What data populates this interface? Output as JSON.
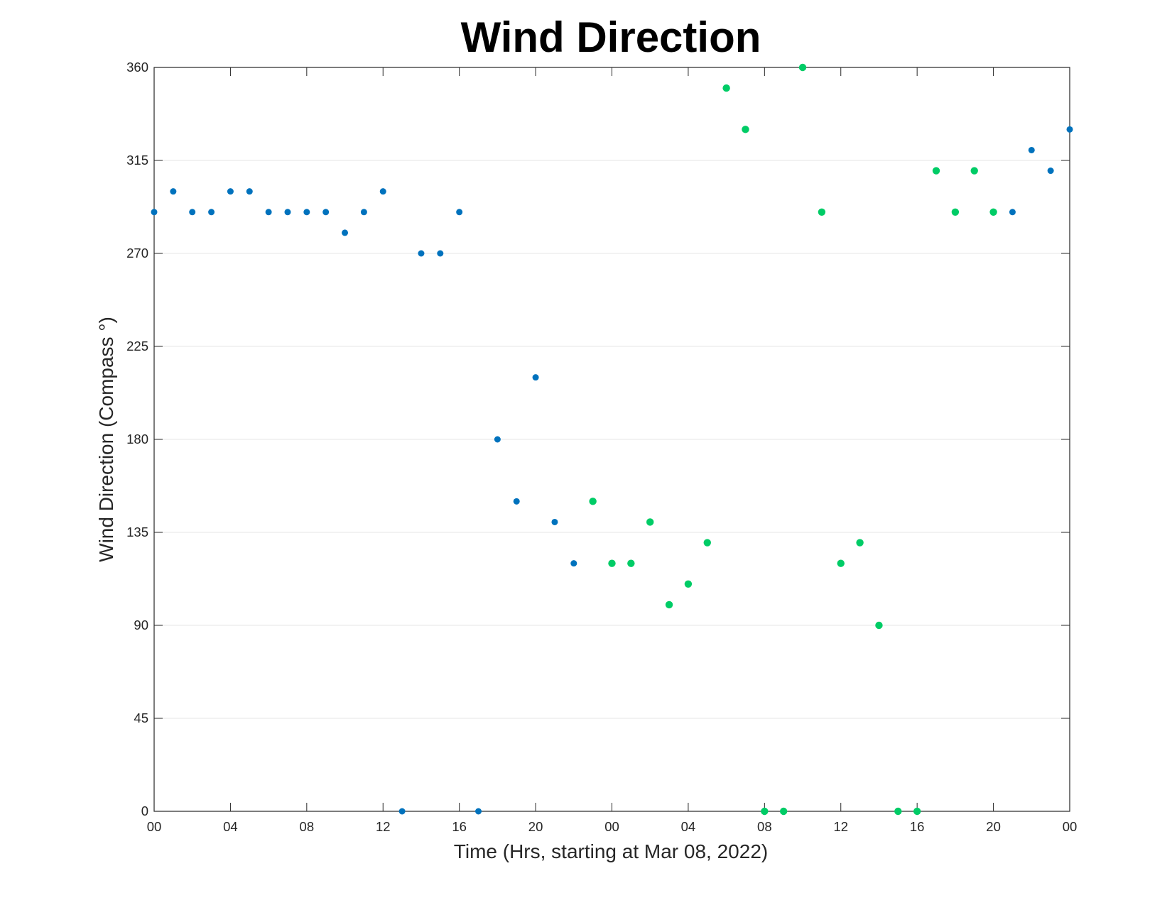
{
  "chart_data": {
    "type": "scatter",
    "title": "Wind Direction",
    "xlabel": "Time (Hrs, starting at Mar 08, 2022)",
    "ylabel": "Wind Direction (Compass °)",
    "ylim": [
      0,
      360
    ],
    "xlim": [
      "2022-03-08 00:00",
      "2022-03-10 00:00"
    ],
    "grid": "horizontal",
    "yticks": [
      0,
      45,
      90,
      135,
      180,
      225,
      270,
      315,
      360
    ],
    "xticks": [
      {
        "x": "2022-03-08 00:00",
        "label": "00"
      },
      {
        "x": "2022-03-08 04:00",
        "label": "04"
      },
      {
        "x": "2022-03-08 08:00",
        "label": "08"
      },
      {
        "x": "2022-03-08 12:00",
        "label": "12"
      },
      {
        "x": "2022-03-08 16:00",
        "label": "16"
      },
      {
        "x": "2022-03-08 20:00",
        "label": "20"
      },
      {
        "x": "2022-03-09 00:00",
        "label": "00"
      },
      {
        "x": "2022-03-09 04:00",
        "label": "04"
      },
      {
        "x": "2022-03-09 08:00",
        "label": "08"
      },
      {
        "x": "2022-03-09 12:00",
        "label": "12"
      },
      {
        "x": "2022-03-09 16:00",
        "label": "16"
      },
      {
        "x": "2022-03-09 20:00",
        "label": "20"
      },
      {
        "x": "2022-03-10 00:00",
        "label": "00"
      }
    ],
    "series": [
      {
        "color": "#0072BD",
        "points": [
          {
            "x": "2022-03-08 00:00",
            "y": 290
          },
          {
            "x": "2022-03-08 01:00",
            "y": 300
          },
          {
            "x": "2022-03-08 02:00",
            "y": 290
          },
          {
            "x": "2022-03-08 03:00",
            "y": 290
          },
          {
            "x": "2022-03-08 04:00",
            "y": 300
          },
          {
            "x": "2022-03-08 05:00",
            "y": 300
          },
          {
            "x": "2022-03-08 06:00",
            "y": 290
          },
          {
            "x": "2022-03-08 07:00",
            "y": 290
          },
          {
            "x": "2022-03-08 08:00",
            "y": 290
          },
          {
            "x": "2022-03-08 09:00",
            "y": 290
          },
          {
            "x": "2022-03-08 10:00",
            "y": 280
          },
          {
            "x": "2022-03-08 11:00",
            "y": 290
          },
          {
            "x": "2022-03-08 12:00",
            "y": 300
          },
          {
            "x": "2022-03-08 13:00",
            "y": 0
          },
          {
            "x": "2022-03-08 14:00",
            "y": 270
          },
          {
            "x": "2022-03-08 15:00",
            "y": 270
          },
          {
            "x": "2022-03-08 16:00",
            "y": 290
          },
          {
            "x": "2022-03-08 17:00",
            "y": 0
          },
          {
            "x": "2022-03-08 18:00",
            "y": 180
          },
          {
            "x": "2022-03-08 19:00",
            "y": 150
          },
          {
            "x": "2022-03-08 20:00",
            "y": 210
          },
          {
            "x": "2022-03-08 21:00",
            "y": 140
          },
          {
            "x": "2022-03-08 22:00",
            "y": 120
          },
          {
            "x": "2022-03-09 21:00",
            "y": 290
          },
          {
            "x": "2022-03-09 22:00",
            "y": 320
          },
          {
            "x": "2022-03-09 23:00",
            "y": 310
          },
          {
            "x": "2022-03-10 00:00",
            "y": 330
          }
        ]
      },
      {
        "color": "#00CC66",
        "points": [
          {
            "x": "2022-03-08 23:00",
            "y": 150
          },
          {
            "x": "2022-03-09 00:00",
            "y": 120
          },
          {
            "x": "2022-03-09 01:00",
            "y": 120
          },
          {
            "x": "2022-03-09 02:00",
            "y": 140
          },
          {
            "x": "2022-03-09 03:00",
            "y": 100
          },
          {
            "x": "2022-03-09 04:00",
            "y": 110
          },
          {
            "x": "2022-03-09 05:00",
            "y": 130
          },
          {
            "x": "2022-03-09 06:00",
            "y": 350
          },
          {
            "x": "2022-03-09 07:00",
            "y": 330
          },
          {
            "x": "2022-03-09 08:00",
            "y": 0
          },
          {
            "x": "2022-03-09 09:00",
            "y": 0
          },
          {
            "x": "2022-03-09 10:00",
            "y": 360
          },
          {
            "x": "2022-03-09 11:00",
            "y": 290
          },
          {
            "x": "2022-03-09 12:00",
            "y": 120
          },
          {
            "x": "2022-03-09 13:00",
            "y": 130
          },
          {
            "x": "2022-03-09 14:00",
            "y": 90
          },
          {
            "x": "2022-03-09 15:00",
            "y": 0
          },
          {
            "x": "2022-03-09 16:00",
            "y": 0
          },
          {
            "x": "2022-03-09 17:00",
            "y": 310
          },
          {
            "x": "2022-03-09 18:00",
            "y": 290
          },
          {
            "x": "2022-03-09 19:00",
            "y": 310
          },
          {
            "x": "2022-03-09 20:00",
            "y": 290
          }
        ]
      }
    ]
  }
}
